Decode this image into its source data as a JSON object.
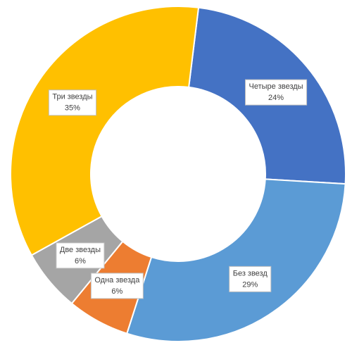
{
  "chart_data": {
    "type": "donut",
    "categories": [
      "Четыре звезды",
      "Без звезд",
      "Одна звезда",
      "Две звезды",
      "Три звезды"
    ],
    "values": [
      24,
      29,
      6,
      6,
      35
    ],
    "value_labels": [
      "24%",
      "29%",
      "6%",
      "6%",
      "35%"
    ],
    "colors": [
      "#4472c4",
      "#5b9bd5",
      "#ed7d31",
      "#a5a5a5",
      "#ffc000"
    ]
  }
}
